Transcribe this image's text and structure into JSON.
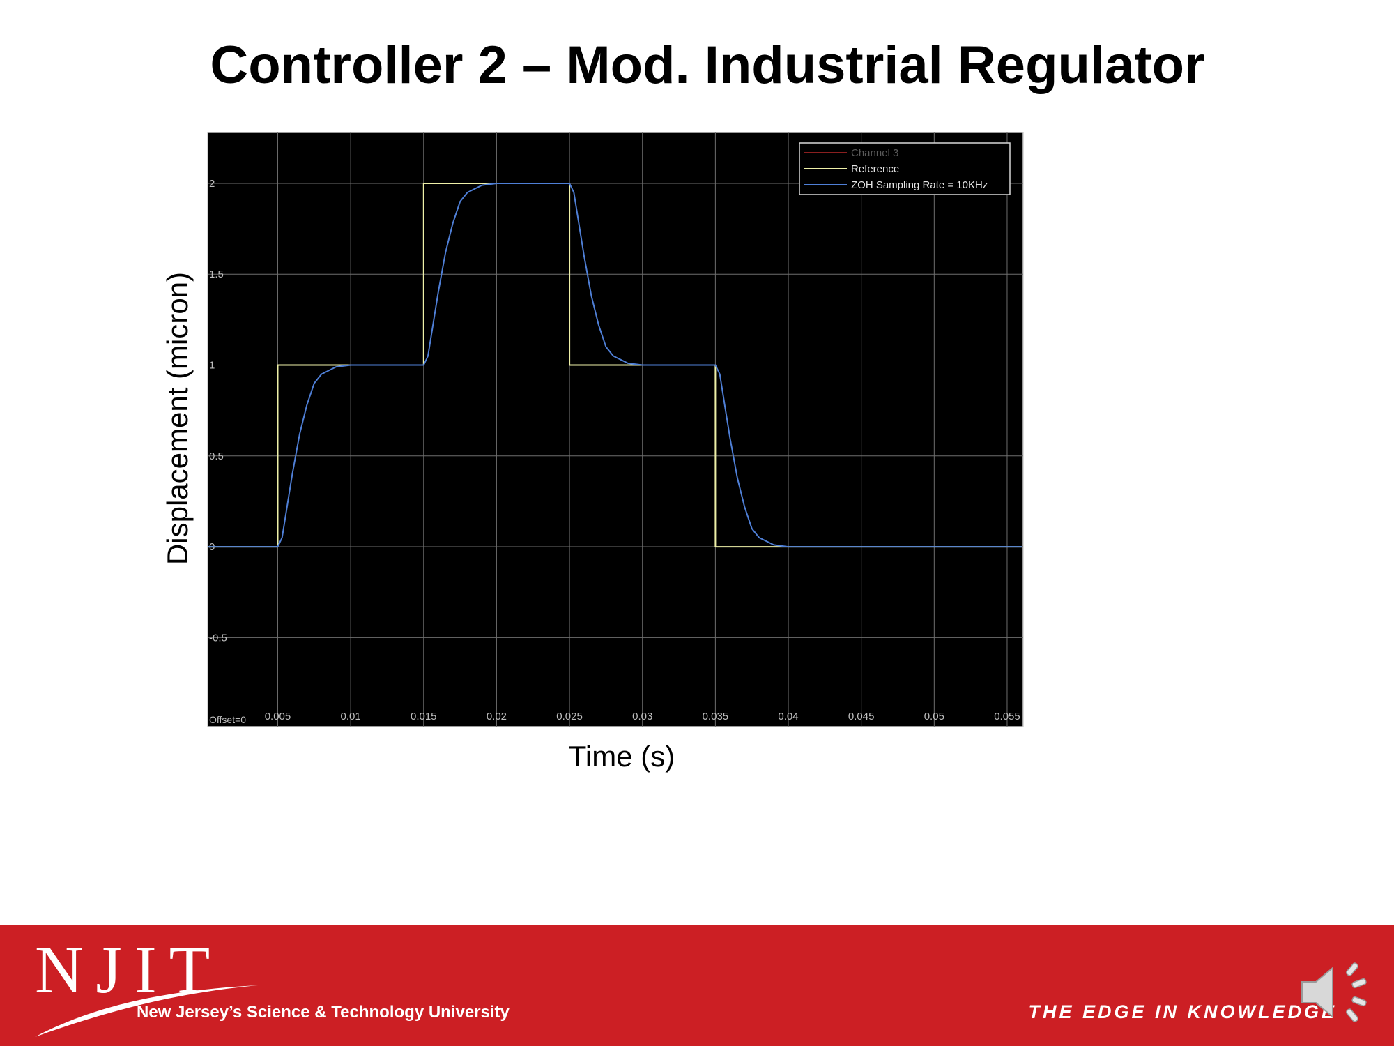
{
  "slide": {
    "title": "Controller 2 – Mod. Industrial Regulator"
  },
  "chart_data": {
    "type": "line",
    "title": "",
    "xlabel": "Time (s)",
    "ylabel": "Displacement (micron)",
    "xlim": [
      0.0002,
      0.0561
    ],
    "ylim": [
      -0.99,
      2.28
    ],
    "x_ticks": [
      0.005,
      0.01,
      0.015,
      0.02,
      0.025,
      0.03,
      0.035,
      0.04,
      0.045,
      0.05,
      0.055
    ],
    "x_tick_labels": [
      "0.005",
      "0.01",
      "0.015",
      "0.02",
      "0.025",
      "0.03",
      "0.035",
      "0.04",
      "0.045",
      "0.05",
      "0.055"
    ],
    "y_ticks": [
      -0.5,
      0,
      0.5,
      1,
      1.5,
      2
    ],
    "y_tick_labels": [
      "-0.5",
      "0",
      "0.5",
      "1",
      "1.5",
      "2"
    ],
    "offset_label": "Offset=0",
    "grid": true,
    "legend_position": "top-right",
    "background": "#000000",
    "series": [
      {
        "name": "Channel 3",
        "color": "#8a1f1f",
        "x": [],
        "y": []
      },
      {
        "name": "Reference",
        "color": "#eef0a8",
        "x": [
          0,
          0.005,
          0.005,
          0.015,
          0.015,
          0.025,
          0.025,
          0.035,
          0.035,
          0.056
        ],
        "y": [
          0,
          0,
          1,
          1,
          2,
          2,
          1,
          1,
          0,
          0
        ]
      },
      {
        "name": "ZOH Sampling Rate = 10KHz",
        "color": "#4f7fd6",
        "x": [
          0,
          0.005,
          0.0053,
          0.0057,
          0.006,
          0.0065,
          0.007,
          0.0075,
          0.008,
          0.009,
          0.01,
          0.015,
          0.0153,
          0.0157,
          0.016,
          0.0165,
          0.017,
          0.0175,
          0.018,
          0.019,
          0.02,
          0.025,
          0.0253,
          0.0257,
          0.026,
          0.0265,
          0.027,
          0.0275,
          0.028,
          0.029,
          0.03,
          0.035,
          0.0353,
          0.0357,
          0.036,
          0.0365,
          0.037,
          0.0375,
          0.038,
          0.039,
          0.04,
          0.056
        ],
        "y": [
          0,
          0,
          0.05,
          0.25,
          0.4,
          0.62,
          0.78,
          0.9,
          0.95,
          0.99,
          1,
          1,
          1.05,
          1.25,
          1.4,
          1.62,
          1.78,
          1.9,
          1.95,
          1.99,
          2,
          2,
          1.95,
          1.75,
          1.6,
          1.38,
          1.22,
          1.1,
          1.05,
          1.01,
          1,
          1,
          0.95,
          0.75,
          0.6,
          0.38,
          0.22,
          0.1,
          0.05,
          0.01,
          0,
          0
        ]
      }
    ]
  },
  "footer": {
    "logo": "NJIT",
    "logo_subtitle": "New Jersey’s Science & Technology University",
    "tagline": "THE EDGE IN KNOWLEDGE",
    "bg_color": "#cc1f24"
  }
}
